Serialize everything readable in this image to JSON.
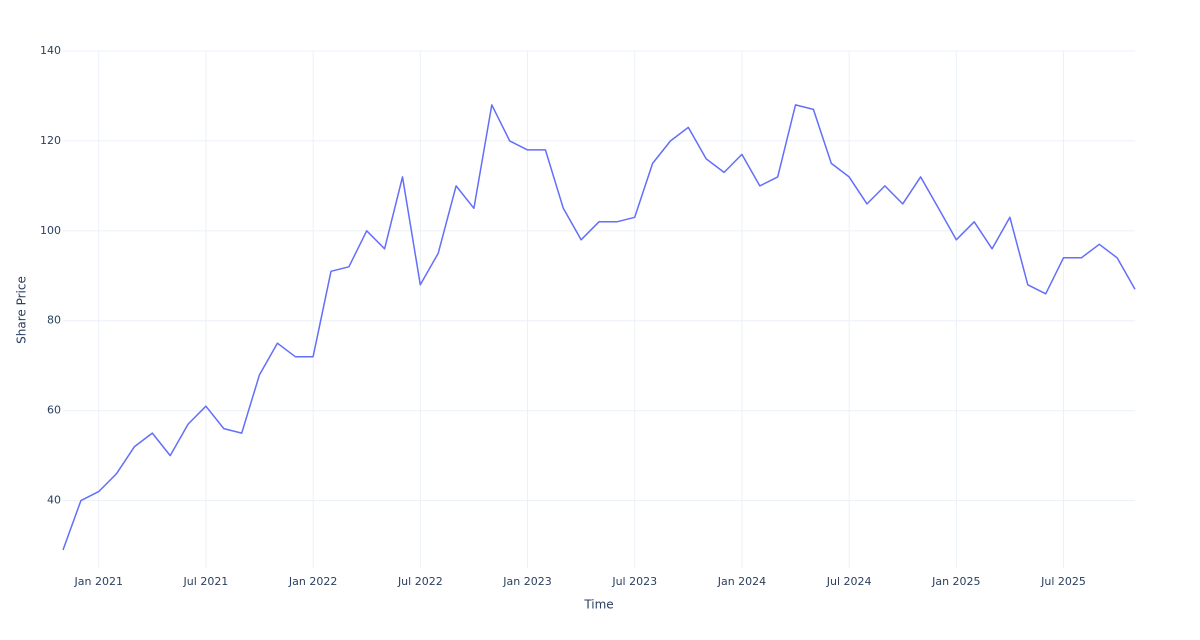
{
  "chart_data": {
    "type": "line",
    "x_label": "Time",
    "y_label": "Share Price",
    "x": [
      "2020-11",
      "2020-12",
      "2021-01",
      "2021-02",
      "2021-03",
      "2021-04",
      "2021-05",
      "2021-06",
      "2021-07",
      "2021-08",
      "2021-09",
      "2021-10",
      "2021-11",
      "2021-12",
      "2022-01",
      "2022-02",
      "2022-03",
      "2022-04",
      "2022-05",
      "2022-06",
      "2022-07",
      "2022-08",
      "2022-09",
      "2022-10",
      "2022-11",
      "2022-12",
      "2023-01",
      "2023-02",
      "2023-03",
      "2023-04",
      "2023-05",
      "2023-06",
      "2023-07",
      "2023-08",
      "2023-09",
      "2023-10",
      "2023-11",
      "2023-12",
      "2024-01",
      "2024-02",
      "2024-03",
      "2024-04",
      "2024-05",
      "2024-06",
      "2024-07",
      "2024-08",
      "2024-09",
      "2024-10",
      "2024-11",
      "2024-12",
      "2025-01",
      "2025-02",
      "2025-03",
      "2025-04",
      "2025-05",
      "2025-06",
      "2025-07",
      "2025-08",
      "2025-09",
      "2025-10",
      "2025-11"
    ],
    "series": [
      {
        "name": "Share Price",
        "color": "#636efa",
        "values": [
          29,
          40,
          42,
          46,
          52,
          55,
          50,
          57,
          61,
          56,
          55,
          68,
          75,
          72,
          72,
          91,
          92,
          100,
          96,
          112,
          88,
          95,
          110,
          105,
          128,
          120,
          118,
          118,
          105,
          98,
          102,
          102,
          103,
          115,
          120,
          123,
          116,
          113,
          117,
          110,
          112,
          128,
          127,
          115,
          112,
          106,
          110,
          106,
          112,
          105,
          98,
          102,
          96,
          103,
          88,
          86,
          94,
          94,
          97,
          94,
          87
        ]
      }
    ],
    "xlim": [
      "2020-11",
      "2025-11"
    ],
    "xticks": [
      {
        "value": "2021-01",
        "label": "Jan 2021"
      },
      {
        "value": "2021-07",
        "label": "Jul 2021"
      },
      {
        "value": "2022-01",
        "label": "Jan 2022"
      },
      {
        "value": "2022-07",
        "label": "Jul 2022"
      },
      {
        "value": "2023-01",
        "label": "Jan 2023"
      },
      {
        "value": "2023-07",
        "label": "Jul 2023"
      },
      {
        "value": "2024-01",
        "label": "Jan 2024"
      },
      {
        "value": "2024-07",
        "label": "Jul 2024"
      },
      {
        "value": "2025-01",
        "label": "Jan 2025"
      },
      {
        "value": "2025-07",
        "label": "Jul 2025"
      }
    ],
    "ylim": [
      25,
      140
    ],
    "yticks": [
      40,
      60,
      80,
      100,
      120,
      140
    ],
    "grid": true,
    "grid_color": "#ebf0f8"
  }
}
